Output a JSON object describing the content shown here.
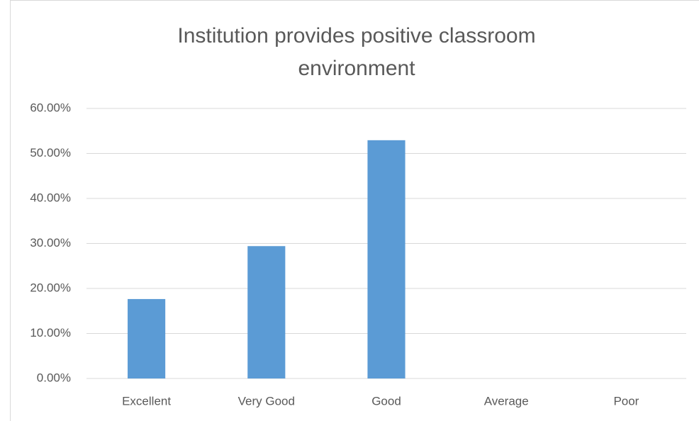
{
  "chart_data": {
    "type": "bar",
    "title": "Institution provides positive classroom environment",
    "categories": [
      "Excellent",
      "Very Good",
      "Good",
      "Average",
      "Poor"
    ],
    "values": [
      17.65,
      29.41,
      52.94,
      0,
      0
    ],
    "color": "#5b9bd5",
    "ylim": [
      0,
      60
    ],
    "yticks": [
      {
        "value": 0,
        "label": "0.00%"
      },
      {
        "value": 10,
        "label": "10.00%"
      },
      {
        "value": 20,
        "label": "20.00%"
      },
      {
        "value": 30,
        "label": "30.00%"
      },
      {
        "value": 40,
        "label": "40.00%"
      },
      {
        "value": 50,
        "label": "50.00%"
      },
      {
        "value": 60,
        "label": "60.00%"
      }
    ],
    "grid": true
  }
}
